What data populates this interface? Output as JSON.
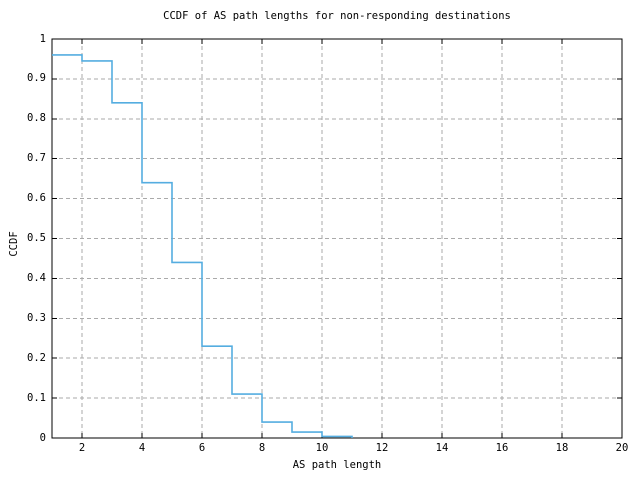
{
  "chart_data": {
    "type": "line",
    "subtype": "step-post-ccdf",
    "title": "CCDF of AS path lengths for non-responding destinations",
    "xlabel": "AS path length",
    "ylabel": "CCDF",
    "xlim": [
      1,
      20
    ],
    "ylim": [
      0,
      1
    ],
    "grid": true,
    "legend": "none",
    "xtick_values": [
      2,
      4,
      6,
      8,
      10,
      12,
      14,
      16,
      18,
      20
    ],
    "xtick_labels": [
      "2",
      "4",
      "6",
      "8",
      "10",
      "12",
      "14",
      "16",
      "18",
      "20"
    ],
    "ytick_values": [
      0,
      0.1,
      0.2,
      0.3,
      0.4,
      0.5,
      0.6,
      0.7,
      0.8,
      0.9,
      1
    ],
    "ytick_labels": [
      "0",
      "0.1",
      "0.2",
      "0.3",
      "0.4",
      "0.5",
      "0.6",
      "0.7",
      "0.8",
      "0.9",
      "1"
    ],
    "line_color": "#55ade0",
    "grid_color": "#aaaaaa",
    "axis_color": "#000000",
    "background_color": "#ffffff",
    "steps": [
      {
        "x": 1,
        "y": 0.96
      },
      {
        "x": 2,
        "y": 0.945
      },
      {
        "x": 3,
        "y": 0.84
      },
      {
        "x": 4,
        "y": 0.64
      },
      {
        "x": 5,
        "y": 0.44
      },
      {
        "x": 6,
        "y": 0.23
      },
      {
        "x": 7,
        "y": 0.11
      },
      {
        "x": 8,
        "y": 0.04
      },
      {
        "x": 9,
        "y": 0.015
      },
      {
        "x": 10,
        "y": 0.004
      },
      {
        "x": 11,
        "y": 0
      }
    ]
  }
}
